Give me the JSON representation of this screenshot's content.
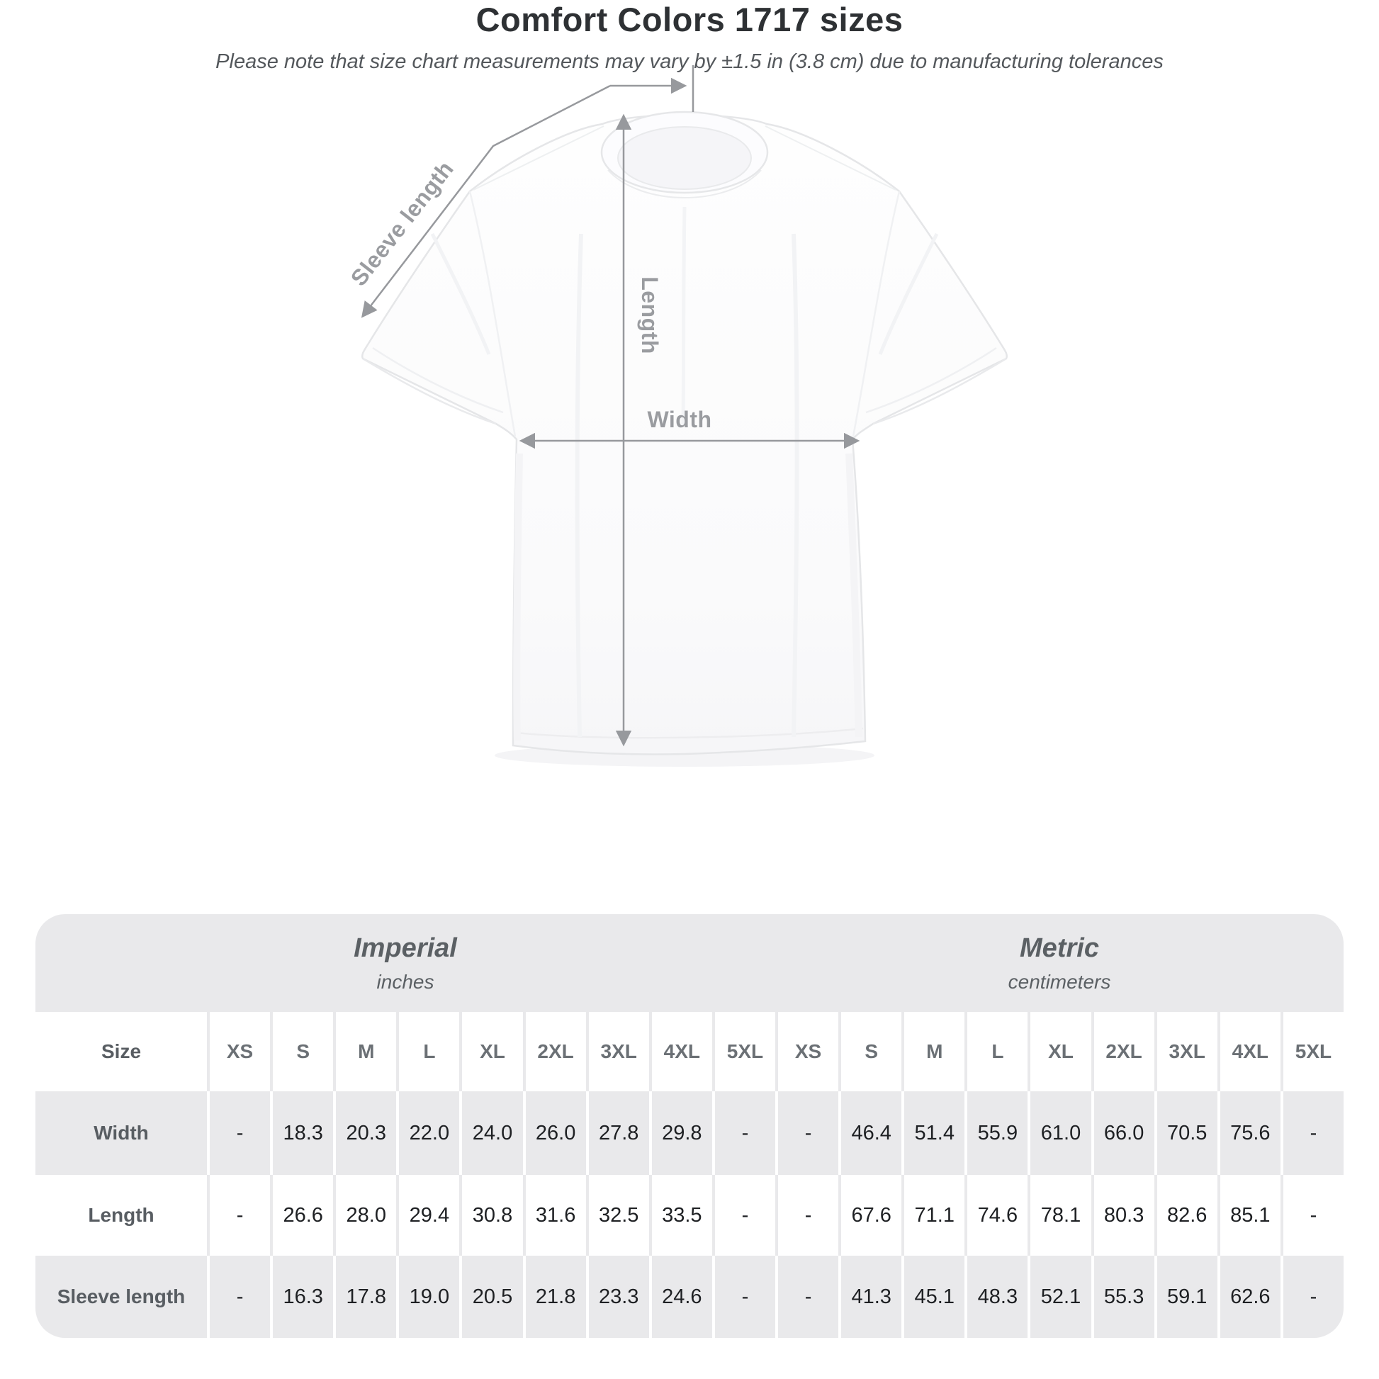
{
  "diagram": {
    "sleeve_label": "Sleeve length",
    "length_label": "Length",
    "width_label": "Width"
  },
  "heading": {
    "title": "Comfort Colors 1717 sizes",
    "subtitle": "Please note that size chart measurements may vary by ±1.5 in (3.8 cm) due to manufacturing tolerances"
  },
  "chart_data": {
    "type": "table",
    "title": "Comfort Colors 1717 sizes",
    "note": "Please note that size chart measurements may vary by ±1.5 in (3.8 cm) due to manufacturing tolerances",
    "corner_label": "Size",
    "groups": [
      {
        "name": "Imperial",
        "unit": "inches"
      },
      {
        "name": "Metric",
        "unit": "centimeters"
      }
    ],
    "sizes": [
      "XS",
      "S",
      "M",
      "L",
      "XL",
      "2XL",
      "3XL",
      "4XL",
      "5XL"
    ],
    "rows": [
      {
        "label": "Width",
        "imperial": [
          "-",
          "18.3",
          "20.3",
          "22.0",
          "24.0",
          "26.0",
          "27.8",
          "29.8",
          "-"
        ],
        "metric": [
          "-",
          "46.4",
          "51.4",
          "55.9",
          "61.0",
          "66.0",
          "70.5",
          "75.6",
          "-"
        ]
      },
      {
        "label": "Length",
        "imperial": [
          "-",
          "26.6",
          "28.0",
          "29.4",
          "30.8",
          "31.6",
          "32.5",
          "33.5",
          "-"
        ],
        "metric": [
          "-",
          "67.6",
          "71.1",
          "74.6",
          "78.1",
          "80.3",
          "82.6",
          "85.1",
          "-"
        ]
      },
      {
        "label": "Sleeve length",
        "imperial": [
          "-",
          "16.3",
          "17.8",
          "19.0",
          "20.5",
          "21.8",
          "23.3",
          "24.6",
          "-"
        ],
        "metric": [
          "-",
          "41.3",
          "45.1",
          "48.3",
          "52.1",
          "55.3",
          "59.1",
          "62.6",
          "-"
        ]
      }
    ],
    "diagram_measurements": [
      "Sleeve length",
      "Length",
      "Width"
    ],
    "colors": {
      "table_band": "#e9e9eb",
      "alt_row": "#e9e9eb",
      "value_text": "#1e2023",
      "header_text": "#6b7075",
      "measure_line": "#97999d"
    },
    "layout_hints": {
      "grid": false,
      "legend_position": "none"
    }
  }
}
